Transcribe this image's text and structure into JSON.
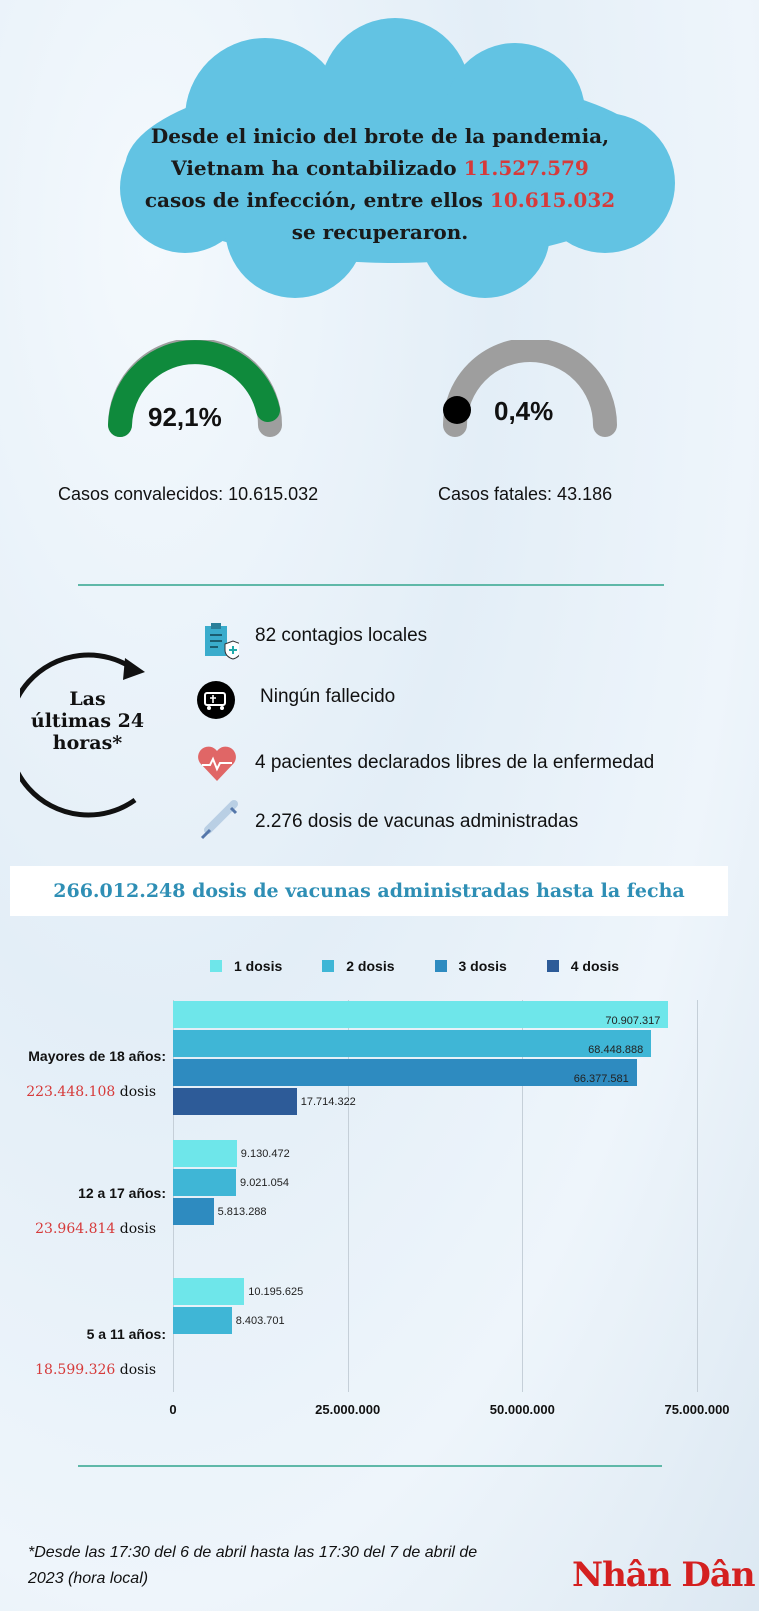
{
  "headline": {
    "line1": "Desde el inicio del brote de la pandemia,",
    "line2_pre": "Vietnam ha contabilizado ",
    "total_cases": "11.527.579",
    "line3_pre": "casos de infección, entre ellos ",
    "recovered": "10.615.032",
    "line4": "se recuperaron."
  },
  "gauges": [
    {
      "value": "92,1%",
      "fraction": 0.921,
      "caption": "Casos convalecidos: 10.615.032",
      "color": "#0f8a3c"
    },
    {
      "value": "0,4%",
      "fraction": 0.004,
      "caption": "Casos fatales: 43.186",
      "color": "#000000"
    }
  ],
  "last24": {
    "title1": "Las",
    "title2": "últimas 24",
    "title3": "horas*",
    "items": [
      {
        "icon": "clipboard-shield-icon",
        "text": "82 contagios locales"
      },
      {
        "icon": "hearse-icon",
        "text": "Ningún  fallecido"
      },
      {
        "icon": "heartbeat-icon",
        "text": "4 pacientes declarados libres de la enfermedad"
      },
      {
        "icon": "syringe-icon",
        "text": "2.276 dosis de vacunas administradas"
      }
    ]
  },
  "banner": "266.012.248 dosis de vacunas administradas hasta la fecha",
  "chart_data": {
    "type": "bar",
    "orientation": "horizontal",
    "legend_position": "top",
    "series_names": [
      "1 dosis",
      "2 dosis",
      "3 dosis",
      "4 dosis"
    ],
    "colors": [
      "#6ee6ea",
      "#3fb6d6",
      "#2e8bc0",
      "#2d5b98"
    ],
    "groups": [
      {
        "label": "Mayores de 18 años:",
        "total": "223.448.108",
        "total_suffix": " dosis",
        "values": [
          70907317,
          68448888,
          66377581,
          17714322
        ],
        "labels": [
          "70.907.317",
          "68.448.888",
          "66.377.581",
          "17.714.322"
        ]
      },
      {
        "label": "12 a 17 años:",
        "total": "23.964.814",
        "total_suffix": " dosis",
        "values": [
          9130472,
          9021054,
          5813288
        ],
        "labels": [
          "9.130.472",
          "9.021.054",
          "5.813.288"
        ]
      },
      {
        "label": "5 a 11 años:",
        "total": "18.599.326",
        "total_suffix": " dosis",
        "values": [
          10195625,
          8403701
        ],
        "labels": [
          "10.195.625",
          "8.403.701"
        ]
      }
    ],
    "xlim": [
      0,
      75000000
    ],
    "xticks": [
      0,
      25000000,
      50000000,
      75000000
    ],
    "xtick_labels": [
      "0",
      "25.000.000",
      "50.000.000",
      "75.000.000"
    ],
    "grid": true
  },
  "footnote": "*Desde las 17:30 del 6 de abril hasta las 17:30 del 7 de abril de 2023 (hora local)",
  "logo": "Nhân Dân"
}
